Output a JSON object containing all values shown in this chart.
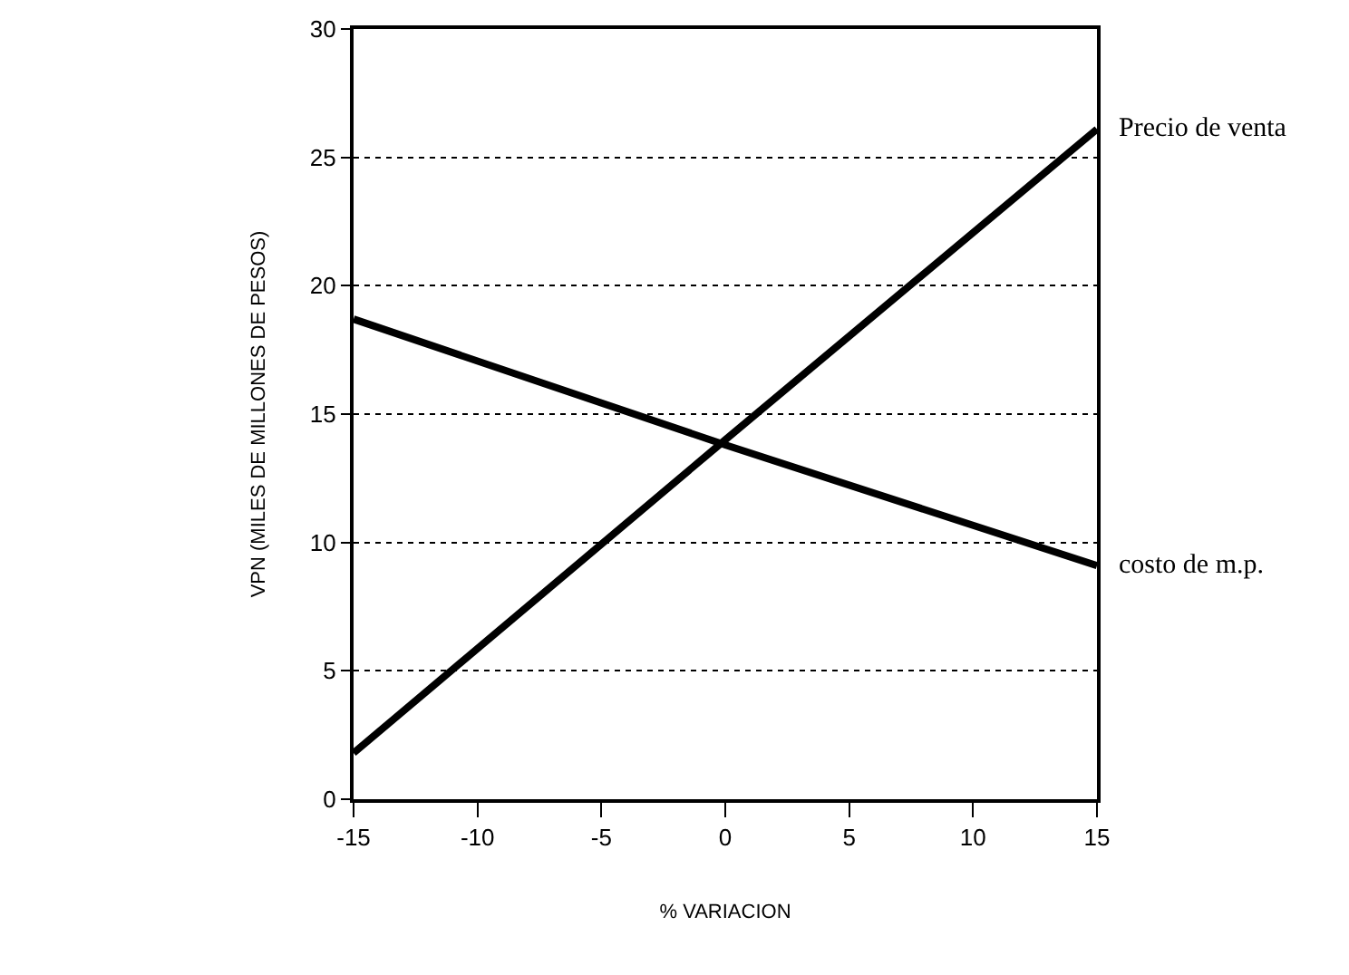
{
  "chart_data": {
    "type": "line",
    "xlabel": "% VARIACION",
    "ylabel": "VPN (MILES DE MILLONES DE PESOS)",
    "x": [
      -15,
      0,
      15
    ],
    "series": [
      {
        "name": "Precio de venta",
        "color": "#000000",
        "values": [
          1.8,
          14,
          26.1
        ]
      },
      {
        "name": "costo de m.p.",
        "color": "#000000",
        "values": [
          18.7,
          13.8,
          9.1
        ]
      }
    ],
    "xlim": [
      -15,
      15
    ],
    "xticks": [
      -15,
      -10,
      -5,
      0,
      5,
      10,
      15
    ],
    "ylim": [
      0,
      30
    ],
    "yticks": [
      0,
      5,
      10,
      15,
      20,
      25,
      30
    ],
    "grid": "y",
    "legend": false,
    "marker": "none",
    "line_style": "solid"
  }
}
